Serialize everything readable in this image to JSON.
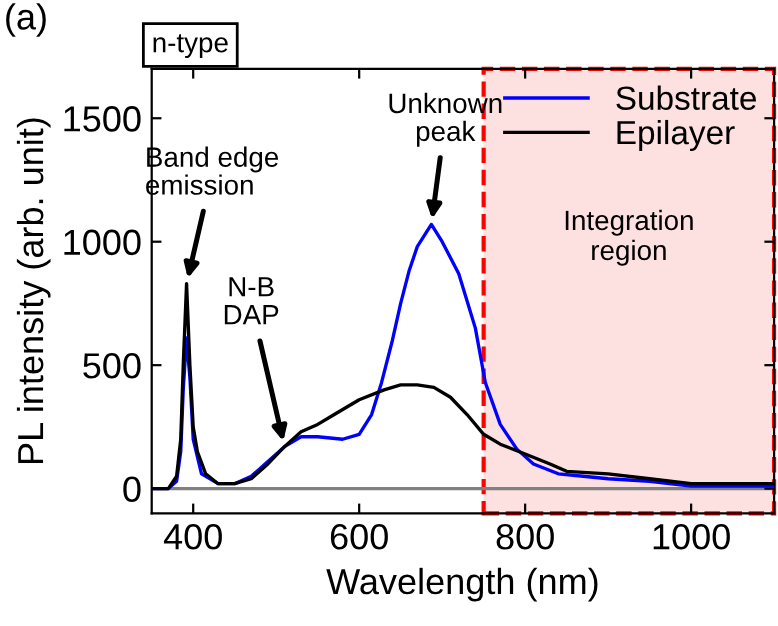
{
  "chart_data": {
    "type": "line",
    "title": "n-type",
    "xlabel": "Wavelength (nm)",
    "ylabel": "PL intensity (arb. unit)",
    "x": [
      350,
      370,
      380,
      385,
      388,
      392,
      396,
      400,
      405,
      415,
      430,
      450,
      470,
      490,
      510,
      530,
      550,
      570,
      600,
      630,
      650,
      670,
      690,
      710,
      730,
      750,
      770,
      800,
      830,
      850,
      900,
      950,
      1000,
      1050,
      1100
    ],
    "xlim": [
      350,
      1100
    ],
    "xticks": [
      400,
      600,
      800,
      1000
    ],
    "ylim": [
      -100,
      1700
    ],
    "yticks": [
      0,
      500,
      1000,
      1500
    ],
    "series": [
      {
        "name": "Substrate",
        "color": "#0000ff",
        "x": [
          350,
          370,
          380,
          385,
          388,
          392,
          396,
          400,
          410,
          430,
          450,
          470,
          490,
          510,
          530,
          550,
          580,
          600,
          615,
          627,
          640,
          650,
          660,
          670,
          687,
          700,
          720,
          740,
          752,
          770,
          790,
          810,
          840,
          870,
          900,
          950,
          1000,
          1050,
          1100
        ],
        "values": [
          0,
          0,
          30,
          150,
          400,
          610,
          450,
          200,
          60,
          20,
          20,
          50,
          110,
          170,
          210,
          210,
          200,
          220,
          300,
          430,
          600,
          750,
          880,
          980,
          1070,
          1000,
          870,
          650,
          430,
          260,
          160,
          100,
          60,
          50,
          40,
          30,
          10,
          10,
          10
        ]
      },
      {
        "name": "Epilayer",
        "color": "#000000",
        "values": [
          0,
          0,
          50,
          200,
          500,
          830,
          500,
          250,
          150,
          60,
          20,
          20,
          40,
          100,
          170,
          230,
          260,
          300,
          360,
          400,
          420,
          420,
          410,
          370,
          300,
          220,
          180,
          140,
          100,
          70,
          60,
          40,
          20,
          20,
          20
        ]
      }
    ],
    "ref_lines": [
      {
        "axis": "y",
        "value": 0,
        "color": "#808080"
      }
    ],
    "bands": [
      {
        "axis": "x",
        "from": 750,
        "to": 1100,
        "label": "Integration region",
        "color": "#fde0e0"
      }
    ],
    "annotations": [
      "(a)",
      {
        "text": "Band edge\nemission",
        "x": 392,
        "y": 830
      },
      {
        "text": "N-B\nDAP",
        "x": 510,
        "y": 170
      },
      {
        "text": "Unknown\npeak",
        "x": 687,
        "y": 1070
      }
    ],
    "legend": "top right",
    "grid": false,
    "marker": "none",
    "line_style": "solid"
  }
}
